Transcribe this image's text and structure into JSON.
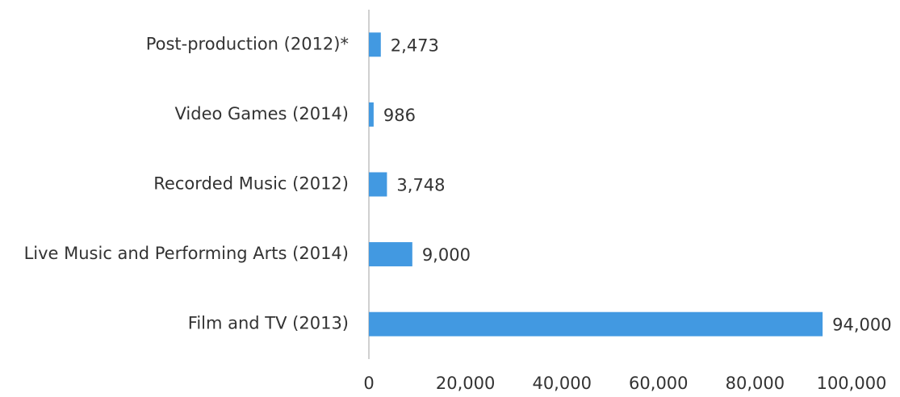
{
  "chart_data": {
    "type": "bar",
    "orientation": "horizontal",
    "categories": [
      "Post-production (2012)*",
      "Video Games (2014)",
      "Recorded Music (2012)",
      "Live Music and Performing Arts (2014)",
      "Film and TV (2013)"
    ],
    "values": [
      2473,
      986,
      3748,
      9000,
      94000
    ],
    "value_labels": [
      "2,473",
      "986",
      "3,748",
      "9,000",
      "94,000"
    ],
    "color": "#4299e1",
    "xlim": [
      0,
      100000
    ],
    "xticks": [
      0,
      {
        "value": 20000,
        "label": "20,000"
      },
      {
        "value": 40000,
        "label": "40,000"
      },
      {
        "value": 60000,
        "label": "60,000"
      },
      {
        "value": 80000,
        "label": "80,000"
      },
      {
        "value": 100000,
        "label": "100,000"
      }
    ]
  }
}
